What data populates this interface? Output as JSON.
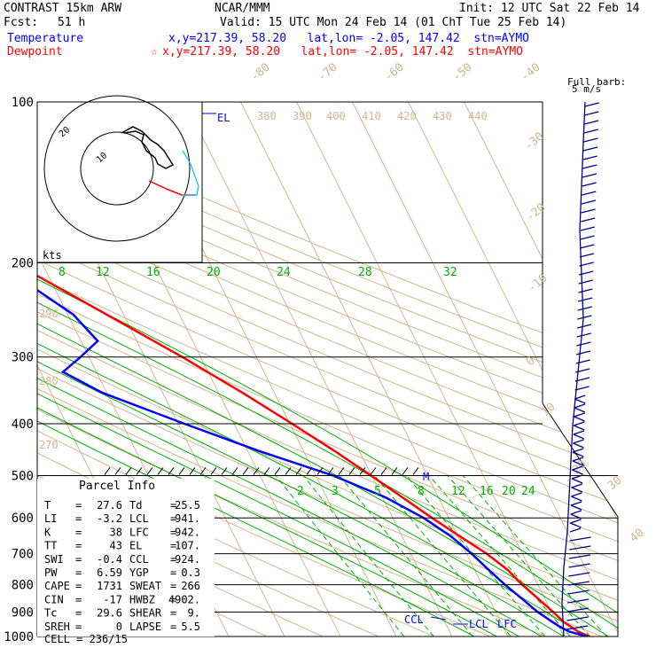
{
  "header": {
    "model": "CONTRAST 15km ARW",
    "source": "NCAR/MMM",
    "init": "Init: 12 UTC Sat 22 Feb 14",
    "fcst_label": "Fcst:",
    "fcst_value": "51 h",
    "valid": "Valid: 15 UTC Mon 24 Feb 14 (01 ChT Tue 25 Feb 14)",
    "temperature_label": "Temperature",
    "temperature_info": "x,y=217.39, 58.20   lat,lon= -2.05, 147.42  stn=AYMO",
    "dewpoint_label": "Dewpoint",
    "dewpoint_info": "x,y=217.39, 58.20   lat,lon= -2.05, 147.42  stn=AYMO"
  },
  "colors": {
    "temperature": "#ff0000",
    "dewpoint": "#0000ff",
    "header_temp": "#0000ff",
    "header_dew": "#ff0000",
    "isotherm": "#d2b48c",
    "dry_adiabat": "#d2b48c",
    "moist_adiabat": "#00b000",
    "mixing_ratio": "#00b000",
    "barb": "#00008b",
    "hodograph_line": "#ff0000",
    "hodograph_line2": "#00bfff"
  },
  "chart_data": {
    "type": "line",
    "title": "CONTRAST 15km ARW",
    "pressure_levels": [
      100,
      200,
      300,
      400,
      500,
      600,
      700,
      800,
      900,
      1000
    ],
    "ylim": [
      1000,
      100
    ],
    "isotherm_labels": [
      "-80",
      "-70",
      "-60",
      "-50",
      "-40",
      "-30",
      "-20",
      "-10",
      "0",
      "10",
      "20",
      "30",
      "40"
    ],
    "theta_labels": [
      "380",
      "390",
      "400",
      "410",
      "420",
      "430",
      "440",
      "290",
      "280",
      "270"
    ],
    "moist_labels": [
      "8",
      "12",
      "16",
      "20",
      "24",
      "28",
      "32"
    ],
    "mixing_ratio_labels": [
      "2",
      "3",
      "5",
      "8",
      "12",
      "16",
      "20",
      "24"
    ],
    "series": [
      {
        "name": "Temperature",
        "points": [
          [
            1000,
            24.6
          ],
          [
            980,
            23.0
          ],
          [
            960,
            22.2
          ],
          [
            940,
            21.3
          ],
          [
            900,
            20.3
          ],
          [
            850,
            18.8
          ],
          [
            800,
            17.2
          ],
          [
            750,
            15.9
          ],
          [
            700,
            13.6
          ],
          [
            650,
            10.4
          ],
          [
            600,
            7.0
          ],
          [
            550,
            3.6
          ],
          [
            500,
            -0.1
          ],
          [
            450,
            -4.4
          ],
          [
            400,
            -9.6
          ],
          [
            350,
            -15.7
          ],
          [
            300,
            -23.3
          ],
          [
            250,
            -33.0
          ],
          [
            200,
            -45.0
          ],
          [
            175,
            -53.0
          ],
          [
            150,
            -62.0
          ],
          [
            130,
            -72.0
          ],
          [
            115,
            -80.0
          ],
          [
            100,
            -88.0
          ]
        ]
      },
      {
        "name": "Dewpoint",
        "points": [
          [
            1000,
            24.2
          ],
          [
            980,
            21.5
          ],
          [
            960,
            20.2
          ],
          [
            940,
            19.3
          ],
          [
            900,
            17.5
          ],
          [
            850,
            15.9
          ],
          [
            800,
            14.1
          ],
          [
            750,
            12.5
          ],
          [
            700,
            10.9
          ],
          [
            650,
            8.8
          ],
          [
            600,
            5.5
          ],
          [
            550,
            0.6
          ],
          [
            500,
            -6.9
          ],
          [
            450,
            -17.9
          ],
          [
            400,
            -28.9
          ],
          [
            350,
            -40.8
          ],
          [
            320,
            -46.0
          ],
          [
            300,
            -41.5
          ],
          [
            280,
            -37.0
          ],
          [
            250,
            -39.0
          ],
          [
            200,
            -48.0
          ],
          [
            180,
            -60.0
          ],
          [
            150,
            -72.0
          ],
          [
            130,
            -83.0
          ],
          [
            115,
            -90.0
          ],
          [
            100,
            -91.0
          ]
        ]
      }
    ],
    "annotations": [
      "EL",
      "M",
      "CCL",
      "LCL",
      "LFC"
    ]
  },
  "hodograph": {
    "units": "kts",
    "ring_labels": [
      "10",
      "20"
    ]
  },
  "barbs": {
    "title_line1": "Full barb:",
    "title_line2": "5 m/s"
  },
  "parcel": {
    "title": "Parcel Info",
    "rows": [
      {
        "k1": "T",
        "v1": "27.6",
        "k2": "Td",
        "v2": "25.5"
      },
      {
        "k1": "LI",
        "v1": "-3.2",
        "k2": "LCL",
        "v2": "941."
      },
      {
        "k1": "K",
        "v1": "38",
        "k2": "LFC",
        "v2": "942."
      },
      {
        "k1": "TT",
        "v1": "43",
        "k2": "EL",
        "v2": "107."
      },
      {
        "k1": "SWI",
        "v1": "-0.4",
        "k2": "CCL",
        "v2": "924."
      },
      {
        "k1": "PW",
        "v1": "6.59",
        "k2": "YGP",
        "v2": "0.3"
      },
      {
        "k1": "CAPE",
        "v1": "1731",
        "k2": "SWEAT",
        "v2": "266"
      },
      {
        "k1": "CIN",
        "v1": "-17",
        "k2": "HWBZ",
        "v2": "4902."
      },
      {
        "k1": "Tc",
        "v1": "29.6",
        "k2": "SHEAR",
        "v2": "9."
      },
      {
        "k1": "SREH",
        "v1": "0",
        "k2": "LAPSE",
        "v2": "5.5"
      }
    ],
    "cell_label": "CELL",
    "cell_value": "236/15"
  }
}
